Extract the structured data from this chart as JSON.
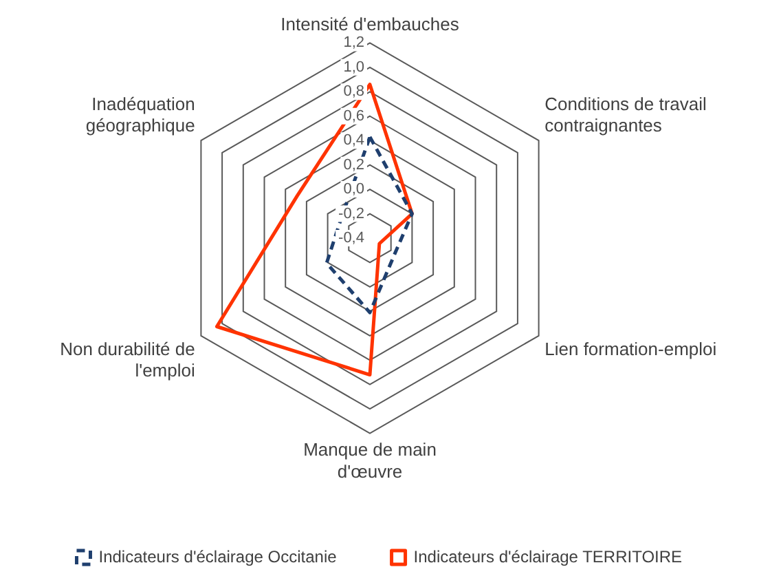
{
  "chart_data": {
    "type": "radar",
    "categories": [
      "Intensité d'embauches",
      "Conditions de travail contraignantes",
      "Lien formation-emploi",
      "Manque de main d'œuvre",
      "Non durabilité de l'emploi",
      "Inadéquation géographique"
    ],
    "series": [
      {
        "name": "Indicateurs d'éclairage Occitanie",
        "color": "#1f3f6e",
        "line_style": "dashed",
        "values": [
          0.43,
          0.0,
          -0.16,
          0.21,
          0.01,
          -0.12
        ]
      },
      {
        "name": "Indicateurs d'éclairage TERRITOIRE",
        "color": "#ff3300",
        "line_style": "solid",
        "values": [
          0.86,
          0.0,
          -0.31,
          0.72,
          1.05,
          0.29
        ]
      }
    ],
    "ylim": [
      -0.4,
      1.2
    ],
    "yticks": [
      {
        "value": -0.4,
        "label": "-0,4"
      },
      {
        "value": -0.2,
        "label": "-0,2"
      },
      {
        "value": 0,
        "label": "0,0"
      },
      {
        "value": 0.2,
        "label": "0,2"
      },
      {
        "value": 0.4,
        "label": "0,4"
      },
      {
        "value": 0.6,
        "label": "0,6"
      },
      {
        "value": 0.8,
        "label": "0,8"
      },
      {
        "value": 1.0,
        "label": "1,0"
      },
      {
        "value": 1.2,
        "label": "1,2"
      }
    ],
    "grid": true,
    "legend": "bottom",
    "marker": "none"
  }
}
